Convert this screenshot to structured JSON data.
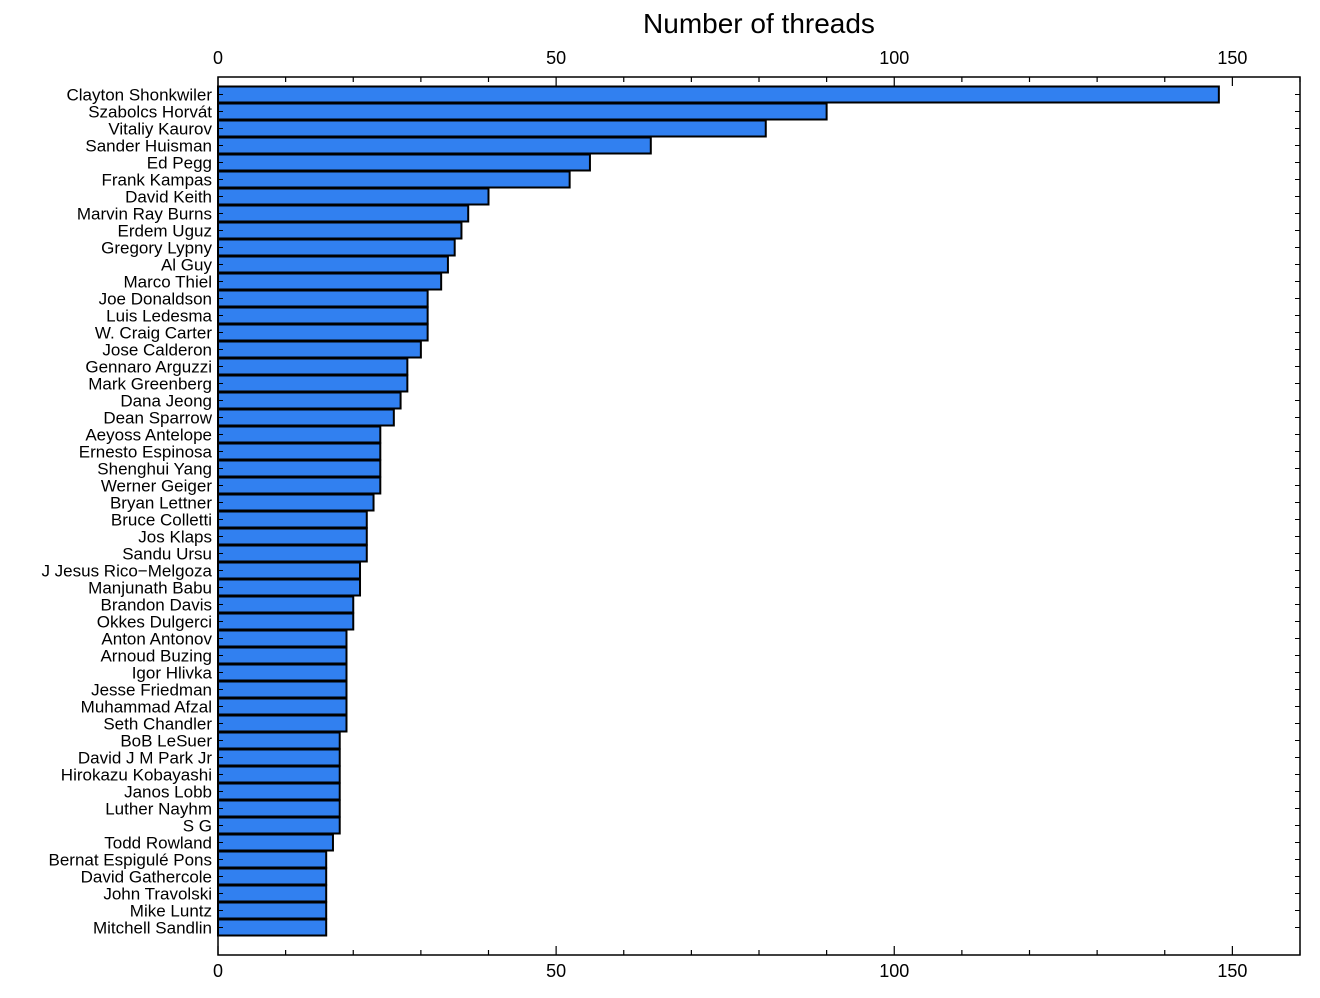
{
  "chart_data": {
    "type": "bar",
    "orientation": "horizontal",
    "title": "Number of threads",
    "xlabel": "",
    "ylabel": "",
    "xlim": [
      0,
      160
    ],
    "xticks": [
      0,
      50,
      100,
      150
    ],
    "axis_labels_top_and_bottom": true,
    "grid": false,
    "bar_color": "#3180f0",
    "bar_edge_color": "#000000",
    "categories": [
      "Clayton Shonkwiler",
      "Szabolcs Horvát",
      "Vitaliy Kaurov",
      "Sander Huisman",
      "Ed Pegg",
      "Frank Kampas",
      "David Keith",
      "Marvin Ray Burns",
      "Erdem Uguz",
      "Gregory Lypny",
      "Al Guy",
      "Marco Thiel",
      "Joe Donaldson",
      "Luis Ledesma",
      "W. Craig Carter",
      "Jose Calderon",
      "Gennaro Arguzzi",
      "Mark Greenberg",
      "Dana Jeong",
      "Dean Sparrow",
      "Aeyoss Antelope",
      "Ernesto Espinosa",
      "Shenghui Yang",
      "Werner Geiger",
      "Bryan Lettner",
      "Bruce Colletti",
      "Jos Klaps",
      "Sandu Ursu",
      "J Jesus Rico−Melgoza",
      "Manjunath Babu",
      "Brandon Davis",
      "Okkes Dulgerci",
      "Anton Antonov",
      "Arnoud Buzing",
      "Igor Hlivka",
      "Jesse Friedman",
      "Muhammad Afzal",
      "Seth Chandler",
      "BoB LeSuer",
      "David J M Park Jr",
      "Hirokazu Kobayashi",
      "Janos Lobb",
      "Luther Nayhm",
      "S G",
      "Todd Rowland",
      "Bernat Espigulé Pons",
      "David Gathercole",
      "John Travolski",
      "Mike Luntz",
      "Mitchell Sandlin"
    ],
    "values": [
      148,
      90,
      81,
      64,
      55,
      52,
      40,
      37,
      36,
      35,
      34,
      33,
      31,
      31,
      31,
      30,
      28,
      28,
      27,
      26,
      24,
      24,
      24,
      24,
      23,
      22,
      22,
      22,
      21,
      21,
      20,
      20,
      19,
      19,
      19,
      19,
      19,
      19,
      18,
      18,
      18,
      18,
      18,
      18,
      17,
      16,
      16,
      16,
      16,
      16
    ]
  }
}
